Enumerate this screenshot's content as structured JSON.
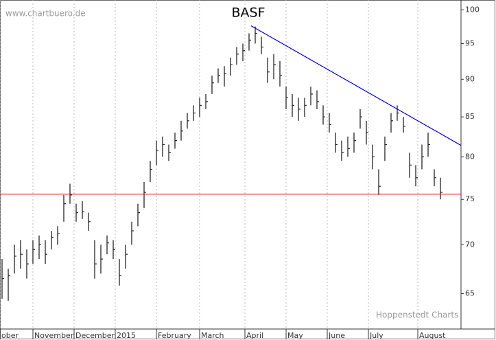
{
  "chart_data": {
    "type": "hlc",
    "title": "BASF",
    "annotations": [
      "www.chartbuero.de",
      "Hoppenstedt Charts"
    ],
    "x": [
      1,
      4,
      7,
      10,
      13,
      16,
      19,
      22,
      25,
      28,
      31,
      34,
      37,
      40,
      43,
      46,
      49,
      52,
      55,
      58,
      61,
      64,
      67,
      70,
      73,
      76,
      79,
      82,
      85,
      88,
      91,
      94,
      97,
      100,
      103,
      106,
      109,
      112,
      115,
      118,
      121,
      124,
      127,
      130,
      133,
      136,
      139,
      142,
      145,
      148,
      151,
      154,
      157,
      160,
      163,
      166,
      169,
      172,
      175,
      178,
      181,
      184,
      187,
      190,
      193,
      196,
      199,
      202,
      205,
      208,
      211,
      214
    ],
    "series": [
      {
        "name": "high",
        "values": [
          68.5,
          67.5,
          70.0,
          70.5,
          69.5,
          70.5,
          71.0,
          70.5,
          71.5,
          72.0,
          75.5,
          76.8,
          74.5,
          74.8,
          73.5,
          70.5,
          70.0,
          71.0,
          70.5,
          68.5,
          70.0,
          72.5,
          74.5,
          77.0,
          79.5,
          82.0,
          82.5,
          81.5,
          83.0,
          84.5,
          85.5,
          86.5,
          87.5,
          88.0,
          90.5,
          91.5,
          91.8,
          93.0,
          94.5,
          95.0,
          96.5,
          97.5,
          96.0,
          93.0,
          93.5,
          92.5,
          89.0,
          88.0,
          87.5,
          87.5,
          89.0,
          88.5,
          86.5,
          85.5,
          83.0,
          82.0,
          82.5,
          83.0,
          86.0,
          84.5,
          81.5,
          78.5,
          82.5,
          85.5,
          86.5,
          85.0,
          80.5,
          79.0,
          81.5,
          83.0,
          78.5,
          77.5
        ]
      },
      {
        "name": "low",
        "values": [
          64.5,
          64.3,
          67.0,
          67.5,
          66.5,
          68.0,
          68.5,
          68.0,
          69.5,
          70.0,
          72.5,
          74.5,
          72.5,
          72.8,
          71.5,
          66.5,
          67.0,
          69.0,
          68.5,
          65.8,
          67.5,
          70.0,
          72.0,
          74.0,
          77.0,
          79.0,
          80.0,
          79.5,
          81.0,
          82.0,
          83.5,
          84.5,
          85.0,
          86.0,
          88.0,
          89.5,
          89.0,
          90.5,
          92.0,
          92.5,
          94.0,
          95.0,
          93.5,
          89.5,
          90.0,
          89.0,
          86.0,
          85.0,
          84.5,
          85.0,
          86.5,
          86.0,
          84.0,
          83.0,
          80.5,
          79.5,
          80.0,
          80.5,
          83.5,
          81.5,
          78.5,
          75.5,
          79.5,
          83.0,
          84.5,
          83.0,
          77.5,
          76.5,
          78.5,
          80.0,
          76.5,
          75.0
        ]
      },
      {
        "name": "close",
        "values": [
          66.5,
          66.8,
          68.8,
          69.0,
          68.0,
          69.5,
          70.0,
          69.0,
          70.8,
          71.2,
          74.5,
          75.5,
          73.5,
          73.6,
          72.5,
          68.0,
          68.5,
          70.2,
          69.5,
          66.8,
          69.0,
          71.5,
          73.5,
          75.8,
          78.5,
          80.8,
          81.5,
          80.5,
          82.0,
          83.2,
          84.5,
          85.5,
          86.5,
          87.0,
          89.5,
          90.5,
          90.8,
          92.0,
          93.5,
          94.0,
          95.5,
          96.5,
          94.5,
          91.0,
          92.0,
          90.5,
          87.5,
          86.5,
          86.0,
          86.5,
          88.0,
          87.0,
          85.0,
          84.0,
          81.5,
          80.5,
          81.0,
          82.0,
          85.0,
          83.0,
          80.0,
          76.5,
          81.5,
          84.5,
          85.5,
          83.8,
          79.0,
          77.5,
          80.0,
          81.5,
          77.5,
          75.8
        ]
      }
    ],
    "bar_color": "#222222",
    "xlim": [
      0,
      224
    ],
    "xticks": [
      {
        "value": 0,
        "label": "ober"
      },
      {
        "value": 16,
        "label": "November"
      },
      {
        "value": 36,
        "label": "December"
      },
      {
        "value": 56,
        "label": "2015"
      },
      {
        "value": 76,
        "label": "February"
      },
      {
        "value": 97,
        "label": "March"
      },
      {
        "value": 119,
        "label": "April"
      },
      {
        "value": 139,
        "label": "May"
      },
      {
        "value": 159,
        "label": "June"
      },
      {
        "value": 179,
        "label": "July"
      },
      {
        "value": 203,
        "label": "August"
      }
    ],
    "ylim": [
      61.6,
      101.5
    ],
    "yticks": [
      65,
      70,
      75,
      80,
      85,
      90,
      95,
      100
    ],
    "log_scale": true,
    "grid": true,
    "hline": {
      "value": 75.6,
      "color": "#ff0000"
    },
    "trend": {
      "x": [
        122,
        224
      ],
      "y": [
        97.6,
        81.4
      ],
      "color": "#0000cc"
    }
  }
}
